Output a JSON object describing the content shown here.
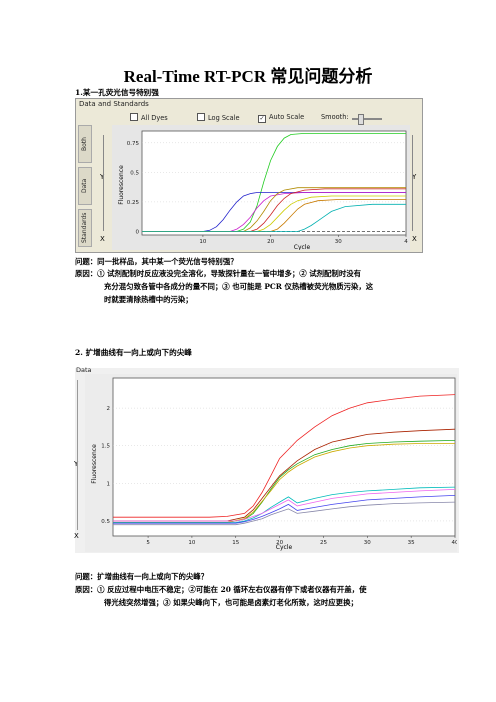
{
  "title": "Real-Time RT-PCR 常见问题分析",
  "section1": {
    "heading": "1.某一孔荧光信号特别强",
    "window": {
      "header": "Data and Standards",
      "controls": {
        "all_dyes": "All Dyes",
        "log_scale": "Log Scale",
        "auto_scale": "Auto Scale",
        "smooth": "Smooth:"
      },
      "side_tabs": [
        "Both",
        "Data",
        "Standards"
      ],
      "side_marks": [
        "Y",
        "X"
      ]
    },
    "question": "问题：同一批样品，其中某一个荧光信号特别强？",
    "reason_lines": [
      "原因：①  试剂配制时反应液没完全溶化，导致探针量在一管中增多；②  试剂配制时没有",
      "充分混匀致各管中各成分的量不同；③  也可能是 PCR 仪热槽被荧光物质污染，这",
      "时就要清除热槽中的污染；"
    ]
  },
  "section2": {
    "heading": "2. 扩增曲线有一向上或向下的尖峰",
    "window": {
      "header": "Data",
      "side_marks": [
        "Y",
        "X"
      ]
    },
    "question": "问题：扩增曲线有一向上或向下的尖峰？",
    "reason_lines": [
      "原因：①  反应过程中电压不稳定；②可能在  20  循环左右仪器有停下或者仪器有开盖，使",
      "得光线突然增强；③  如果尖峰向下，也可能是卤素灯老化所致，这时应更换；"
    ]
  },
  "chart_data": [
    {
      "type": "line",
      "xlabel": "Cycle",
      "ylabel": "Fluorescence",
      "xticks": [
        "10",
        "20",
        "30",
        "4"
      ],
      "yticks": [
        "0",
        "0.25",
        "0.5",
        "0.75"
      ],
      "xlim": [
        1,
        40
      ],
      "ylim": [
        -0.03,
        0.85
      ],
      "series": [
        {
          "color": "#22cc22",
          "x": [
            1,
            15,
            16,
            17,
            18,
            19,
            20,
            21,
            22,
            23,
            25,
            28,
            40
          ],
          "y": [
            0,
            0,
            0.02,
            0.08,
            0.22,
            0.42,
            0.6,
            0.72,
            0.79,
            0.82,
            0.83,
            0.83,
            0.83
          ]
        },
        {
          "color": "#2222cc",
          "x": [
            1,
            10,
            11,
            12,
            13,
            14,
            15,
            16,
            17,
            18,
            19,
            22,
            40
          ],
          "y": [
            0,
            0,
            0.01,
            0.04,
            0.1,
            0.18,
            0.25,
            0.3,
            0.32,
            0.33,
            0.33,
            0.33,
            0.33
          ]
        },
        {
          "color": "#cc22cc",
          "x": [
            1,
            14,
            15,
            16,
            17,
            18,
            19,
            20,
            22,
            25,
            40
          ],
          "y": [
            0,
            0,
            0.02,
            0.06,
            0.12,
            0.2,
            0.26,
            0.3,
            0.32,
            0.33,
            0.33
          ]
        },
        {
          "color": "#b08a00",
          "x": [
            1,
            16,
            17,
            18,
            19,
            20,
            21,
            22,
            24,
            27,
            40
          ],
          "y": [
            0,
            0,
            0.03,
            0.09,
            0.17,
            0.26,
            0.32,
            0.35,
            0.37,
            0.37,
            0.37
          ]
        },
        {
          "color": "#cc2222",
          "x": [
            1,
            17,
            18,
            19,
            20,
            21,
            22,
            23,
            25,
            28,
            40
          ],
          "y": [
            0,
            0,
            0.02,
            0.07,
            0.14,
            0.22,
            0.28,
            0.32,
            0.35,
            0.36,
            0.36
          ]
        },
        {
          "color": "#cccc00",
          "x": [
            1,
            18,
            19,
            20,
            21,
            22,
            23,
            24,
            26,
            29,
            40
          ],
          "y": [
            0,
            0,
            0.02,
            0.06,
            0.12,
            0.18,
            0.23,
            0.26,
            0.29,
            0.3,
            0.3
          ]
        },
        {
          "color": "#c87a00",
          "x": [
            1,
            20,
            21,
            22,
            23,
            24,
            25,
            27,
            30,
            40
          ],
          "y": [
            0,
            0,
            0.02,
            0.07,
            0.13,
            0.19,
            0.23,
            0.26,
            0.27,
            0.27
          ]
        },
        {
          "color": "#00b0b0",
          "x": [
            1,
            24,
            25,
            26,
            27,
            28,
            29,
            31,
            35,
            40
          ],
          "y": [
            0,
            0,
            0.02,
            0.05,
            0.09,
            0.13,
            0.17,
            0.21,
            0.23,
            0.23
          ]
        }
      ]
    },
    {
      "type": "line",
      "xlabel": "Cycle",
      "ylabel": "Fluorescence",
      "xticks": [
        "5",
        "10",
        "15",
        "20",
        "25",
        "30",
        "35",
        "40"
      ],
      "yticks": [
        "0.5",
        "1",
        "1.5",
        "2"
      ],
      "xlim": [
        1,
        40
      ],
      "ylim": [
        0.3,
        2.4
      ],
      "series": [
        {
          "color": "#ee2222",
          "x": [
            1,
            12,
            14,
            16,
            17,
            18,
            19,
            20,
            21,
            22,
            24,
            26,
            28,
            30,
            33,
            36,
            40
          ],
          "y": [
            0.55,
            0.55,
            0.56,
            0.6,
            0.7,
            0.88,
            1.1,
            1.33,
            1.45,
            1.57,
            1.75,
            1.9,
            2.0,
            2.07,
            2.12,
            2.16,
            2.18
          ]
        },
        {
          "color": "#aa2200",
          "x": [
            1,
            14,
            16,
            17,
            18,
            19,
            20,
            21,
            22,
            24,
            26,
            28,
            30,
            33,
            36,
            40
          ],
          "y": [
            0.5,
            0.5,
            0.55,
            0.65,
            0.8,
            0.95,
            1.1,
            1.2,
            1.3,
            1.45,
            1.55,
            1.6,
            1.65,
            1.68,
            1.7,
            1.72
          ]
        },
        {
          "color": "#22aa22",
          "x": [
            1,
            14,
            16,
            17,
            18,
            19,
            20,
            21,
            22,
            24,
            26,
            28,
            30,
            33,
            36,
            40
          ],
          "y": [
            0.48,
            0.48,
            0.52,
            0.6,
            0.75,
            0.92,
            1.08,
            1.18,
            1.26,
            1.38,
            1.45,
            1.5,
            1.53,
            1.55,
            1.56,
            1.57
          ]
        },
        {
          "color": "#ccaa00",
          "x": [
            1,
            14,
            16,
            17,
            18,
            19,
            20,
            21,
            22,
            24,
            26,
            28,
            30,
            33,
            36,
            40
          ],
          "y": [
            0.48,
            0.48,
            0.53,
            0.62,
            0.76,
            0.9,
            1.05,
            1.15,
            1.23,
            1.35,
            1.42,
            1.47,
            1.5,
            1.52,
            1.53,
            1.53
          ]
        },
        {
          "color": "#00bbbb",
          "x": [
            1,
            15,
            16,
            17,
            18,
            19,
            20,
            21,
            22,
            24,
            26,
            28,
            30,
            33,
            36,
            40
          ],
          "y": [
            0.48,
            0.48,
            0.5,
            0.54,
            0.6,
            0.68,
            0.75,
            0.82,
            0.74,
            0.8,
            0.85,
            0.88,
            0.9,
            0.92,
            0.94,
            0.95
          ]
        },
        {
          "color": "#ee66ee",
          "x": [
            1,
            15,
            16,
            17,
            18,
            19,
            20,
            21,
            22,
            24,
            26,
            28,
            30,
            33,
            36,
            40
          ],
          "y": [
            0.5,
            0.5,
            0.52,
            0.56,
            0.6,
            0.66,
            0.72,
            0.78,
            0.7,
            0.75,
            0.8,
            0.83,
            0.86,
            0.88,
            0.9,
            0.92
          ]
        },
        {
          "color": "#4444ee",
          "x": [
            1,
            15,
            16,
            17,
            18,
            19,
            20,
            21,
            22,
            24,
            26,
            28,
            30,
            33,
            36,
            40
          ],
          "y": [
            0.47,
            0.47,
            0.49,
            0.52,
            0.56,
            0.61,
            0.66,
            0.72,
            0.64,
            0.68,
            0.72,
            0.75,
            0.78,
            0.8,
            0.82,
            0.84
          ]
        },
        {
          "color": "#8888aa",
          "x": [
            1,
            15,
            16,
            17,
            18,
            19,
            20,
            21,
            22,
            24,
            26,
            28,
            30,
            33,
            36,
            40
          ],
          "y": [
            0.45,
            0.45,
            0.47,
            0.5,
            0.53,
            0.58,
            0.62,
            0.66,
            0.6,
            0.63,
            0.66,
            0.69,
            0.71,
            0.73,
            0.74,
            0.75
          ]
        }
      ]
    }
  ]
}
